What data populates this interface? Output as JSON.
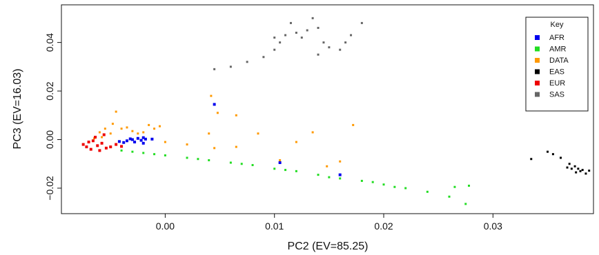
{
  "chart_data": {
    "type": "scatter",
    "xlabel": "PC2 (EV=85.25)",
    "ylabel": "PC3 (EV=16.03)",
    "xlim": [
      -0.0095,
      0.0392
    ],
    "ylim": [
      -0.0305,
      0.0555
    ],
    "xticks": [
      0.0,
      0.01,
      0.02,
      0.03
    ],
    "xtick_labels": [
      "0.00",
      "0.01",
      "0.02",
      "0.03"
    ],
    "yticks": [
      -0.02,
      0.0,
      0.02,
      0.04
    ],
    "ytick_labels": [
      "−0.02",
      "0.00",
      "0.02",
      "0.04"
    ],
    "grid": false,
    "legend": {
      "title": "Key",
      "placement": "top-right"
    },
    "series": [
      {
        "name": "AFR",
        "color": "#0000ee",
        "points": [
          [
            -0.0035,
            -0.0005
          ],
          [
            -0.003,
            0.0
          ],
          [
            -0.0025,
            0.0005
          ],
          [
            -0.002,
            0.0008
          ],
          [
            -0.0028,
            -0.001
          ],
          [
            -0.0038,
            -0.0012
          ],
          [
            -0.0022,
            -0.0003
          ],
          [
            -0.0032,
            0.0003
          ],
          [
            -0.0018,
            0.0002
          ],
          [
            -0.0042,
            -0.0008
          ],
          [
            0.0045,
            0.0145
          ],
          [
            0.0105,
            -0.0095
          ],
          [
            0.016,
            -0.0145
          ],
          [
            -0.002,
            -0.0015
          ],
          [
            -0.0012,
            0.0002
          ]
        ]
      },
      {
        "name": "AMR",
        "color": "#22dd22",
        "points": [
          [
            -0.004,
            -0.0045
          ],
          [
            -0.002,
            -0.0055
          ],
          [
            0.0,
            -0.0065
          ],
          [
            0.002,
            -0.0075
          ],
          [
            0.004,
            -0.0085
          ],
          [
            0.006,
            -0.0095
          ],
          [
            0.008,
            -0.0105
          ],
          [
            0.01,
            -0.012
          ],
          [
            0.012,
            -0.013
          ],
          [
            0.014,
            -0.0145
          ],
          [
            0.016,
            -0.016
          ],
          [
            0.018,
            -0.017
          ],
          [
            0.02,
            -0.0185
          ],
          [
            0.022,
            -0.02
          ],
          [
            0.024,
            -0.0215
          ],
          [
            0.026,
            -0.0235
          ],
          [
            0.0275,
            -0.0265
          ],
          [
            0.0278,
            -0.019
          ],
          [
            0.0265,
            -0.0195
          ],
          [
            0.019,
            -0.0175
          ],
          [
            0.021,
            -0.0195
          ],
          [
            0.015,
            -0.0155
          ],
          [
            0.011,
            -0.0125
          ],
          [
            0.007,
            -0.01
          ],
          [
            0.003,
            -0.008
          ],
          [
            -0.001,
            -0.006
          ],
          [
            -0.003,
            -0.005
          ]
        ]
      },
      {
        "name": "DATA",
        "color": "#ff9900",
        "points": [
          [
            -0.0065,
            0.0005
          ],
          [
            -0.006,
            0.003
          ],
          [
            -0.0055,
            0.0045
          ],
          [
            -0.005,
            0.0025
          ],
          [
            -0.0048,
            0.0065
          ],
          [
            -0.0045,
            0.0115
          ],
          [
            -0.004,
            0.0045
          ],
          [
            -0.0035,
            0.005
          ],
          [
            -0.003,
            0.0035
          ],
          [
            -0.0025,
            0.0025
          ],
          [
            -0.002,
            0.003
          ],
          [
            -0.0015,
            0.006
          ],
          [
            -0.001,
            0.0045
          ],
          [
            -0.0005,
            0.0055
          ],
          [
            0.0,
            -0.001
          ],
          [
            0.002,
            -0.002
          ],
          [
            0.004,
            0.0025
          ],
          [
            0.0042,
            0.018
          ],
          [
            0.0048,
            0.011
          ],
          [
            0.0065,
            0.01
          ],
          [
            0.0065,
            -0.003
          ],
          [
            0.0085,
            0.0025
          ],
          [
            0.0105,
            -0.0085
          ],
          [
            0.012,
            -0.001
          ],
          [
            0.0135,
            0.003
          ],
          [
            0.016,
            -0.009
          ],
          [
            0.0172,
            0.006
          ],
          [
            0.0148,
            -0.011
          ],
          [
            0.0045,
            -0.0035
          ],
          [
            -0.0058,
            0.001
          ]
        ]
      },
      {
        "name": "EAS",
        "color": "#000000",
        "points": [
          [
            0.0335,
            -0.008
          ],
          [
            0.035,
            -0.005
          ],
          [
            0.0355,
            -0.006
          ],
          [
            0.0362,
            -0.0075
          ],
          [
            0.037,
            -0.01
          ],
          [
            0.0375,
            -0.011
          ],
          [
            0.0378,
            -0.012
          ],
          [
            0.038,
            -0.013
          ],
          [
            0.0382,
            -0.0125
          ],
          [
            0.0376,
            -0.0135
          ],
          [
            0.0372,
            -0.012
          ],
          [
            0.0385,
            -0.014
          ],
          [
            0.0368,
            -0.0115
          ],
          [
            0.0388,
            -0.0128
          ]
        ]
      },
      {
        "name": "EUR",
        "color": "#ee0000",
        "points": [
          [
            -0.0075,
            -0.002
          ],
          [
            -0.0072,
            -0.003
          ],
          [
            -0.007,
            -0.001
          ],
          [
            -0.0068,
            -0.004
          ],
          [
            -0.0066,
            -0.0005
          ],
          [
            -0.0064,
            0.001
          ],
          [
            -0.0062,
            -0.0025
          ],
          [
            -0.006,
            -0.0045
          ],
          [
            -0.0058,
            -0.0015
          ],
          [
            -0.0056,
            0.002
          ],
          [
            -0.0054,
            -0.0035
          ],
          [
            -0.005,
            -0.003
          ],
          [
            -0.0045,
            -0.002
          ],
          [
            -0.004,
            -0.0028
          ]
        ]
      },
      {
        "name": "SAS",
        "color": "#666666",
        "points": [
          [
            0.0045,
            0.029
          ],
          [
            0.006,
            0.03
          ],
          [
            0.0075,
            0.032
          ],
          [
            0.009,
            0.034
          ],
          [
            0.01,
            0.037
          ],
          [
            0.0105,
            0.04
          ],
          [
            0.011,
            0.043
          ],
          [
            0.012,
            0.044
          ],
          [
            0.013,
            0.045
          ],
          [
            0.014,
            0.046
          ],
          [
            0.0125,
            0.042
          ],
          [
            0.0145,
            0.04
          ],
          [
            0.015,
            0.038
          ],
          [
            0.016,
            0.037
          ],
          [
            0.0165,
            0.04
          ],
          [
            0.017,
            0.043
          ],
          [
            0.018,
            0.048
          ],
          [
            0.0115,
            0.048
          ],
          [
            0.01,
            0.042
          ],
          [
            0.0135,
            0.05
          ],
          [
            0.014,
            0.035
          ]
        ]
      }
    ]
  }
}
